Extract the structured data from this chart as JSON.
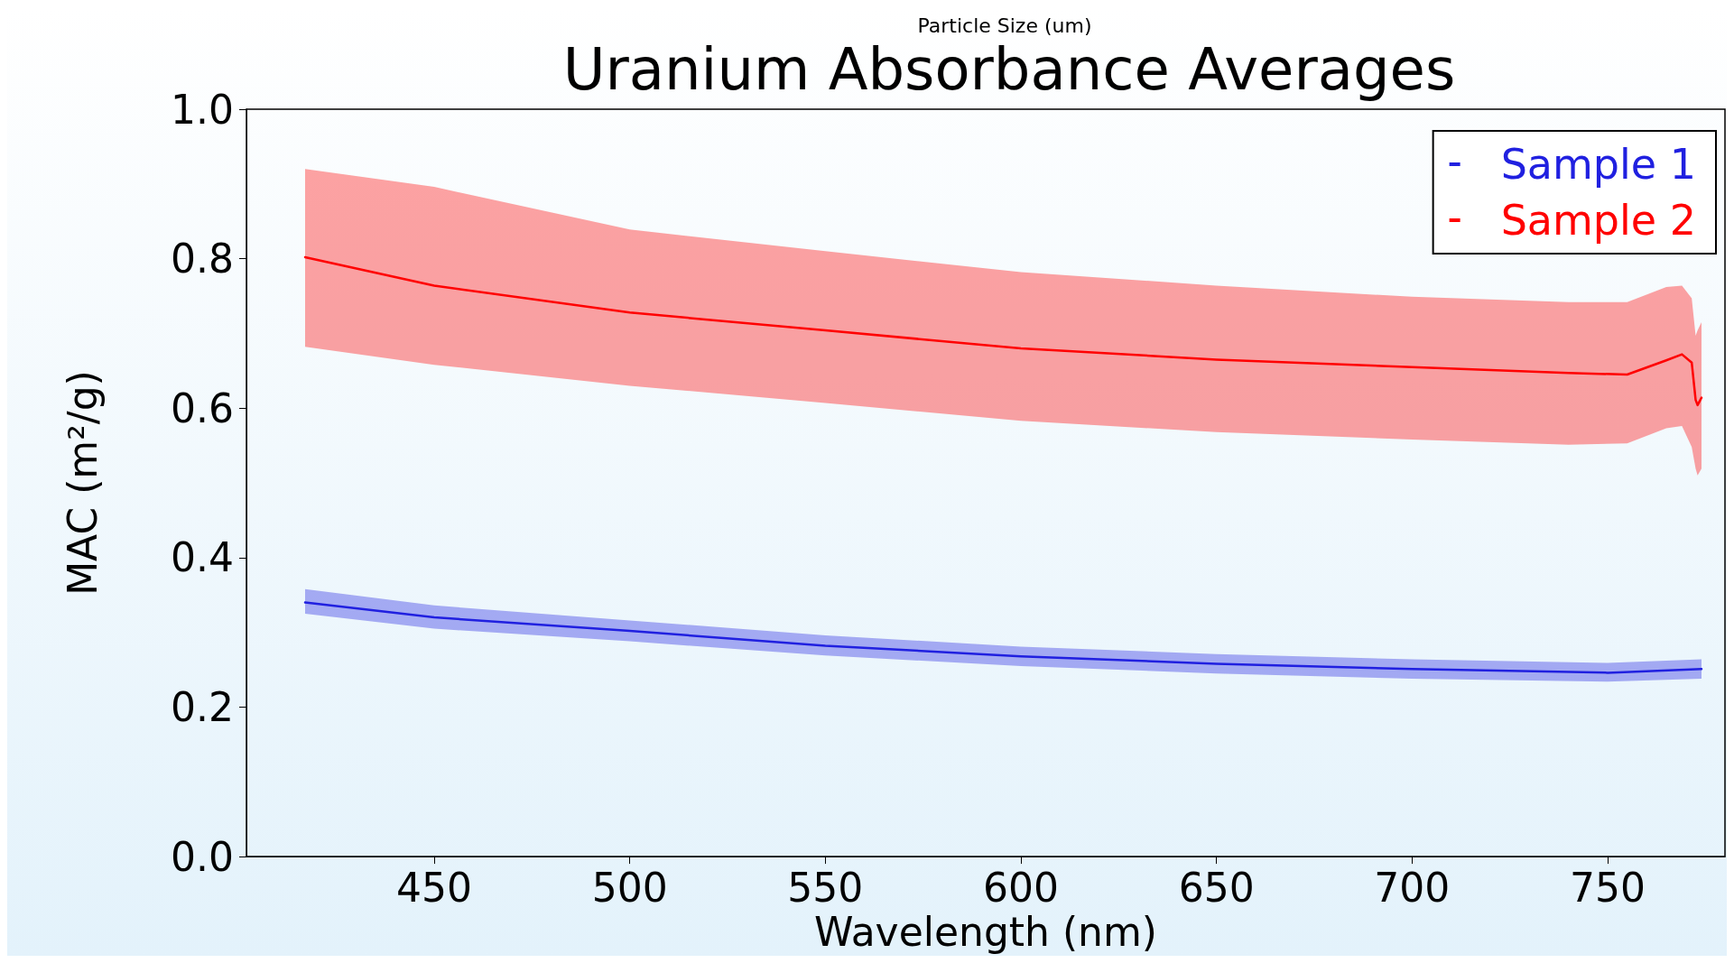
{
  "chart_data": {
    "type": "line",
    "title": "Uranium Absorbance Averages",
    "xlabel": "Wavelength (nm)",
    "ylabel": "MAC (m²/g)",
    "annotations": [
      "Particle Size (um)"
    ],
    "x": [
      417,
      450,
      500,
      550,
      600,
      650,
      700,
      740,
      755,
      765,
      769,
      771.5,
      772.5,
      773,
      774
    ],
    "series": [
      {
        "name": "Sample 1",
        "color": "#2020e0",
        "x": [
          417,
          450,
          500,
          550,
          600,
          650,
          700,
          750,
          774
        ],
        "values": [
          0.34,
          0.32,
          0.302,
          0.282,
          0.268,
          0.258,
          0.251,
          0.246,
          0.251
        ],
        "lower": [
          0.325,
          0.305,
          0.288,
          0.269,
          0.255,
          0.245,
          0.238,
          0.234,
          0.238
        ],
        "upper": [
          0.358,
          0.336,
          0.316,
          0.296,
          0.281,
          0.271,
          0.264,
          0.259,
          0.264
        ]
      },
      {
        "name": "Sample 2",
        "color": "#ff0000",
        "values": [
          0.802,
          0.764,
          0.728,
          0.704,
          0.68,
          0.665,
          0.655,
          0.647,
          0.645,
          0.664,
          0.672,
          0.661,
          0.611,
          0.604,
          0.614
        ],
        "lower": [
          0.682,
          0.658,
          0.63,
          0.607,
          0.583,
          0.568,
          0.558,
          0.551,
          0.553,
          0.573,
          0.576,
          0.548,
          0.519,
          0.51,
          0.519
        ],
        "upper": [
          0.92,
          0.896,
          0.839,
          0.81,
          0.782,
          0.764,
          0.749,
          0.742,
          0.742,
          0.762,
          0.764,
          0.747,
          0.697,
          0.704,
          0.715
        ]
      }
    ],
    "xlim": [
      402,
      780
    ],
    "xticks": [
      450,
      500,
      550,
      600,
      650,
      700,
      750
    ],
    "ylim": [
      0,
      1
    ],
    "yticks": [
      {
        "value": 0,
        "label": "0.0"
      },
      0.2,
      0.4,
      0.6,
      0.8,
      {
        "value": 1,
        "label": "1.0"
      }
    ],
    "grid": false,
    "legend": "top right",
    "line_style": "solid",
    "marker": "none"
  }
}
